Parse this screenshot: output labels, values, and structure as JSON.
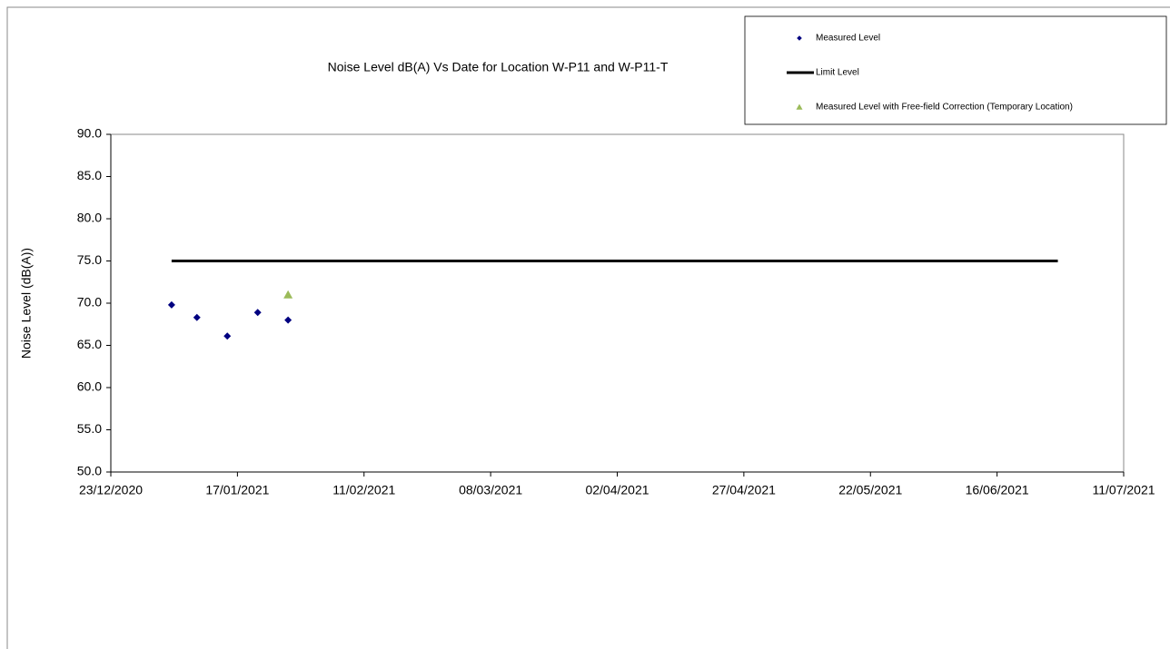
{
  "chart_data": {
    "type": "scatter",
    "title": "Noise Level dB(A) Vs Date for Location W-P11 and W-P11-T",
    "ylabel": "Noise Level (dB(A))",
    "xlim": [
      "23/12/2020",
      "11/07/2021"
    ],
    "xticks": [
      "23/12/2020",
      "17/01/2021",
      "11/02/2021",
      "08/03/2021",
      "02/04/2021",
      "27/04/2021",
      "22/05/2021",
      "16/06/2021",
      "11/07/2021"
    ],
    "ylim": [
      50,
      90
    ],
    "yticks": [
      {
        "value": 50,
        "label": "50.0"
      },
      {
        "value": 55,
        "label": "55.0"
      },
      {
        "value": 60,
        "label": "60.0"
      },
      {
        "value": 65,
        "label": "65.0"
      },
      {
        "value": 70,
        "label": "70.0"
      },
      {
        "value": 75,
        "label": "75.0"
      },
      {
        "value": 80,
        "label": "80.0"
      },
      {
        "value": 85,
        "label": "85.0"
      },
      {
        "value": 90,
        "label": "90.0"
      }
    ],
    "series": [
      {
        "name": "Measured Level",
        "color": "#000080",
        "marker": "diamond",
        "x": [
          "04/01/2021",
          "09/01/2021",
          "15/01/2021",
          "21/01/2021",
          "27/01/2021"
        ],
        "values": [
          69.8,
          68.3,
          66.1,
          68.9,
          68.0
        ]
      },
      {
        "name": "Limit Level",
        "color": "#000000",
        "marker": "line",
        "x": [
          "04/01/2021",
          "28/06/2021"
        ],
        "values": [
          75,
          75
        ]
      },
      {
        "name": "Measured Level with Free-field Correction (Temporary Location)",
        "color": "#9bbb59",
        "marker": "triangle",
        "x": [
          "27/01/2021"
        ],
        "values": [
          71.0
        ]
      }
    ]
  }
}
